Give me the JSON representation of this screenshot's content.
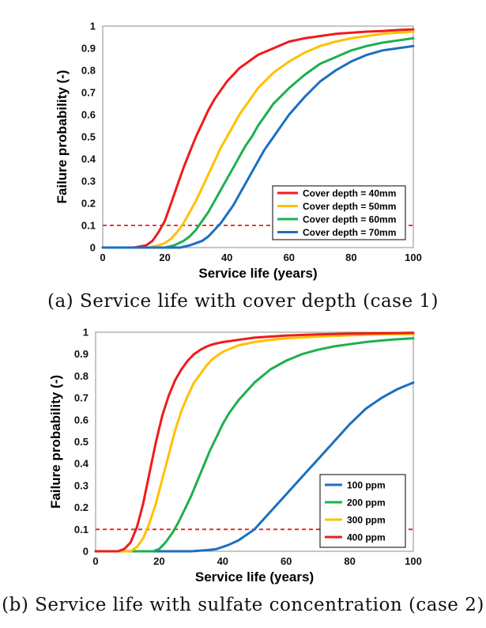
{
  "captions": {
    "a": "(a) Service life with cover depth (case 1)",
    "b": "(b) Service life with sulfate concentration (case 2)"
  },
  "chart_data": [
    {
      "type": "line",
      "xlabel": "Service life (years)",
      "ylabel": "Failure probability (-)",
      "xlim": [
        0,
        100
      ],
      "ylim": [
        0,
        1
      ],
      "xticks": [
        "0",
        "20",
        "40",
        "60",
        "80",
        "100"
      ],
      "yticks": [
        "0",
        "0.1",
        "0.2",
        "0.3",
        "0.4",
        "0.5",
        "0.6",
        "0.7",
        "0.8",
        "0.9",
        "1"
      ],
      "grid": false,
      "legend": "bottom-right",
      "reference_line": {
        "y": 0.1,
        "style": "dashed",
        "color": "#e02020"
      },
      "series": [
        {
          "name": "Cover depth = 40mm",
          "color": "#ee1c1c",
          "x": [
            0,
            10,
            14,
            16,
            18,
            20,
            22,
            24,
            26,
            28,
            30,
            32,
            34,
            36,
            38,
            40,
            42,
            44,
            46,
            48,
            50,
            55,
            60,
            65,
            70,
            75,
            80,
            85,
            90,
            95,
            100
          ],
          "y": [
            0,
            0,
            0.01,
            0.03,
            0.07,
            0.12,
            0.2,
            0.28,
            0.36,
            0.43,
            0.5,
            0.56,
            0.62,
            0.67,
            0.71,
            0.75,
            0.78,
            0.81,
            0.83,
            0.85,
            0.87,
            0.9,
            0.93,
            0.945,
            0.955,
            0.965,
            0.97,
            0.975,
            0.978,
            0.982,
            0.985
          ]
        },
        {
          "name": "Cover depth = 50mm",
          "color": "#ffc000",
          "x": [
            0,
            15,
            18,
            20,
            22,
            24,
            26,
            28,
            30,
            32,
            34,
            36,
            38,
            40,
            42,
            44,
            46,
            48,
            50,
            55,
            60,
            65,
            70,
            75,
            80,
            85,
            90,
            95,
            100
          ],
          "y": [
            0,
            0,
            0.01,
            0.02,
            0.04,
            0.07,
            0.11,
            0.16,
            0.21,
            0.27,
            0.33,
            0.39,
            0.45,
            0.5,
            0.55,
            0.6,
            0.64,
            0.68,
            0.72,
            0.79,
            0.84,
            0.88,
            0.91,
            0.93,
            0.945,
            0.955,
            0.965,
            0.97,
            0.975
          ]
        },
        {
          "name": "Cover depth = 60mm",
          "color": "#1db04e",
          "x": [
            0,
            20,
            23,
            26,
            28,
            30,
            32,
            34,
            36,
            38,
            40,
            42,
            44,
            46,
            48,
            50,
            52,
            55,
            60,
            65,
            70,
            75,
            80,
            85,
            90,
            95,
            100
          ],
          "y": [
            0,
            0,
            0.01,
            0.03,
            0.05,
            0.08,
            0.12,
            0.16,
            0.21,
            0.26,
            0.31,
            0.36,
            0.41,
            0.46,
            0.5,
            0.55,
            0.59,
            0.65,
            0.72,
            0.78,
            0.83,
            0.86,
            0.89,
            0.91,
            0.925,
            0.935,
            0.945
          ]
        },
        {
          "name": "Cover depth = 70mm",
          "color": "#1b6fc0",
          "x": [
            0,
            25,
            28,
            30,
            32,
            34,
            36,
            38,
            40,
            42,
            44,
            46,
            48,
            50,
            52,
            54,
            56,
            58,
            60,
            65,
            70,
            75,
            80,
            85,
            90,
            95,
            100
          ],
          "y": [
            0,
            0,
            0.01,
            0.02,
            0.03,
            0.05,
            0.08,
            0.11,
            0.15,
            0.19,
            0.24,
            0.29,
            0.34,
            0.39,
            0.44,
            0.48,
            0.52,
            0.56,
            0.6,
            0.68,
            0.75,
            0.8,
            0.84,
            0.87,
            0.89,
            0.9,
            0.91
          ]
        }
      ]
    },
    {
      "type": "line",
      "xlabel": "Service life (years)",
      "ylabel": "Failure probability (-)",
      "xlim": [
        0,
        100
      ],
      "ylim": [
        0,
        1
      ],
      "xticks": [
        "0",
        "20",
        "40",
        "60",
        "80",
        "100"
      ],
      "yticks": [
        "0",
        "0.1",
        "0.2",
        "0.3",
        "0.4",
        "0.5",
        "0.6",
        "0.7",
        "0.8",
        "0.9",
        "1"
      ],
      "grid": false,
      "legend": "bottom-right",
      "reference_line": {
        "y": 0.1,
        "style": "dashed",
        "color": "#e02020"
      },
      "series": [
        {
          "name": "100 ppm",
          "color": "#1b6fc0",
          "x": [
            0,
            30,
            35,
            38,
            40,
            42,
            45,
            48,
            50,
            55,
            60,
            65,
            70,
            75,
            80,
            85,
            90,
            95,
            100
          ],
          "y": [
            0,
            0,
            0.005,
            0.01,
            0.02,
            0.03,
            0.05,
            0.08,
            0.1,
            0.18,
            0.26,
            0.34,
            0.42,
            0.5,
            0.58,
            0.65,
            0.7,
            0.74,
            0.77
          ]
        },
        {
          "name": "200 ppm",
          "color": "#1db04e",
          "x": [
            0,
            18,
            20,
            22,
            24,
            26,
            28,
            30,
            32,
            34,
            36,
            38,
            40,
            42,
            45,
            50,
            55,
            60,
            65,
            70,
            75,
            80,
            85,
            90,
            95,
            100
          ],
          "y": [
            0,
            0,
            0.01,
            0.04,
            0.08,
            0.13,
            0.19,
            0.25,
            0.32,
            0.39,
            0.46,
            0.52,
            0.58,
            0.63,
            0.69,
            0.77,
            0.83,
            0.87,
            0.9,
            0.92,
            0.935,
            0.945,
            0.955,
            0.962,
            0.968,
            0.972
          ]
        },
        {
          "name": "300 ppm",
          "color": "#ffc000",
          "x": [
            0,
            11,
            13,
            15,
            17,
            19,
            21,
            23,
            25,
            27,
            29,
            31,
            33,
            35,
            37,
            40,
            45,
            50,
            55,
            60,
            70,
            80,
            90,
            100
          ],
          "y": [
            0,
            0,
            0.02,
            0.06,
            0.13,
            0.22,
            0.33,
            0.44,
            0.55,
            0.64,
            0.71,
            0.77,
            0.81,
            0.85,
            0.88,
            0.91,
            0.94,
            0.955,
            0.965,
            0.972,
            0.98,
            0.986,
            0.99,
            0.992
          ]
        },
        {
          "name": "400 ppm",
          "color": "#ee1c1c",
          "x": [
            0,
            7,
            9,
            11,
            13,
            15,
            17,
            19,
            21,
            23,
            25,
            27,
            29,
            31,
            33,
            35,
            37,
            40,
            45,
            50,
            60,
            70,
            80,
            90,
            100
          ],
          "y": [
            0,
            0,
            0.01,
            0.04,
            0.11,
            0.22,
            0.36,
            0.5,
            0.62,
            0.71,
            0.78,
            0.83,
            0.87,
            0.9,
            0.92,
            0.935,
            0.945,
            0.955,
            0.965,
            0.975,
            0.985,
            0.99,
            0.993,
            0.995,
            0.997
          ]
        }
      ]
    }
  ]
}
